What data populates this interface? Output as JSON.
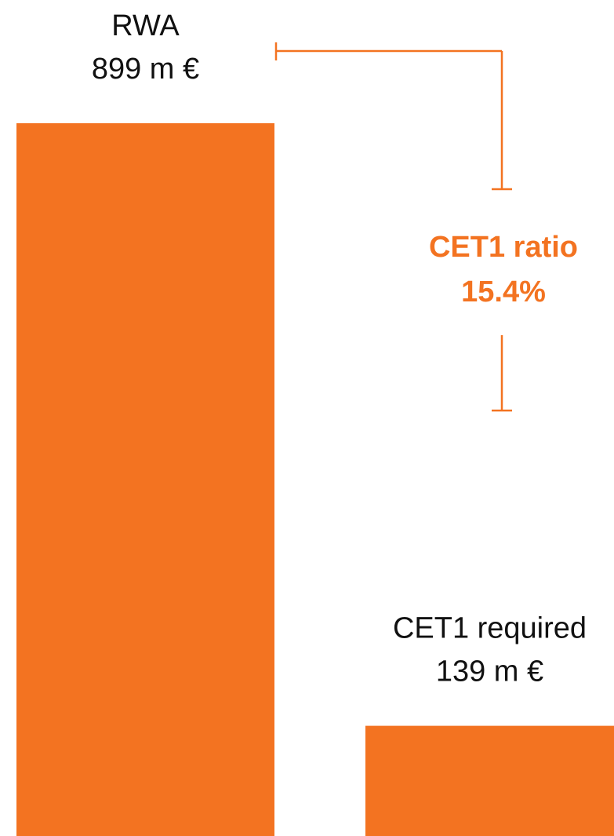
{
  "chart_data": {
    "type": "bar",
    "categories": [
      "RWA",
      "CET1 required"
    ],
    "values": [
      899,
      139
    ],
    "value_labels": [
      "899 m €",
      "139 m €"
    ],
    "color": "#f37321",
    "annotation": {
      "title": "CET1 ratio",
      "label": "15.4%"
    }
  }
}
